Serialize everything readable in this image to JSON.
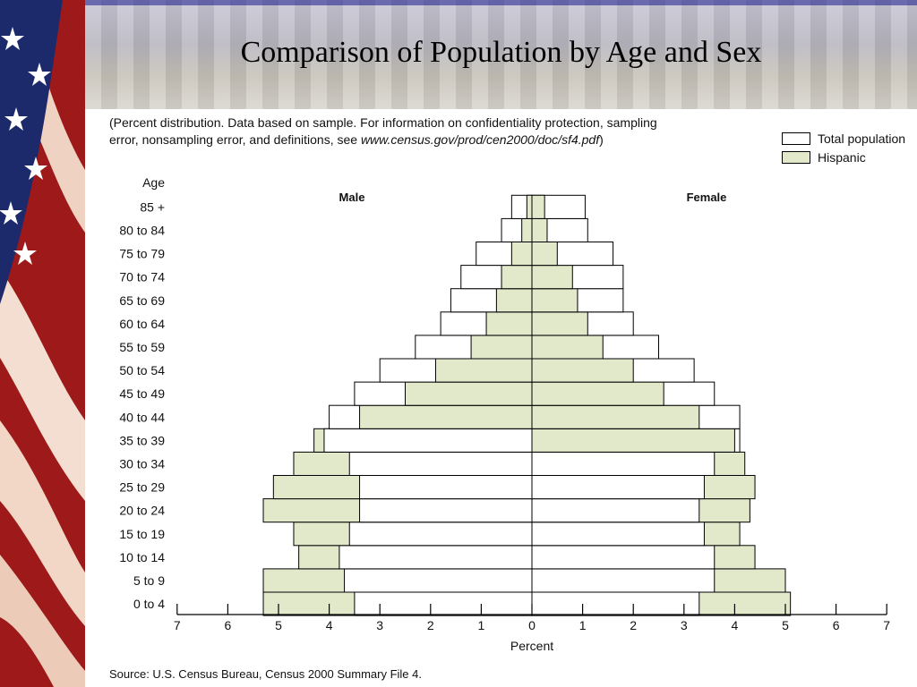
{
  "slide": {
    "title": "Comparison of Population by Age and Sex"
  },
  "caption": {
    "line1": "(Percent distribution.  Data based on sample.  For information on confidentiality protection, sampling",
    "line2_prefix": "error, nonsampling error, and definitions, see ",
    "line2_url": "www.census.gov/prod/cen2000/doc/sf4.pdf",
    "line2_suffix": ")"
  },
  "source": "Source:  U.S. Census Bureau, Census 2000 Summary File 4.",
  "colors": {
    "total_fill": "#ffffff",
    "hispanic_fill": "#e2e9cb",
    "hispanic_stroke": "#b8bd2e",
    "outline": "#000000",
    "flag_red": "#b31b1b",
    "flag_navy": "#1c2a6b"
  },
  "chart_data": {
    "type": "bar",
    "orientation": "horizontal",
    "subtype": "population-pyramid",
    "age_axis_label": "Age",
    "male_label": "Male",
    "female_label": "Female",
    "xlabel": "Percent",
    "xlim": [
      -7,
      7
    ],
    "xticks": [
      -7,
      -6,
      -5,
      -4,
      -3,
      -2,
      -1,
      0,
      1,
      2,
      3,
      4,
      5,
      6,
      7
    ],
    "xtick_labels": [
      "7",
      "6",
      "5",
      "4",
      "3",
      "2",
      "1",
      "0",
      "1",
      "2",
      "3",
      "4",
      "5",
      "6",
      "7"
    ],
    "legend_position": "top-right",
    "categories": [
      "0 to 4",
      "5 to 9",
      "10 to 14",
      "15 to 19",
      "20 to 24",
      "25 to 29",
      "30 to 34",
      "35 to 39",
      "40 to 44",
      "45 to 49",
      "50 to 54",
      "55 to 59",
      "60 to 64",
      "65 to 69",
      "70 to 74",
      "75 to 79",
      "80 to 84",
      "85 +"
    ],
    "series": [
      {
        "name": "Total population",
        "male": [
          3.5,
          3.7,
          3.8,
          3.6,
          3.4,
          3.4,
          3.6,
          4.1,
          4.0,
          3.5,
          3.0,
          2.3,
          1.8,
          1.6,
          1.4,
          1.1,
          0.6,
          0.4
        ],
        "female": [
          3.3,
          3.6,
          3.6,
          3.4,
          3.3,
          3.4,
          3.6,
          4.1,
          4.1,
          3.6,
          3.2,
          2.5,
          2.0,
          1.8,
          1.8,
          1.6,
          1.1,
          1.05
        ]
      },
      {
        "name": "Hispanic",
        "male": [
          5.3,
          5.3,
          4.6,
          4.7,
          5.3,
          5.1,
          4.7,
          4.3,
          3.4,
          2.5,
          1.9,
          1.2,
          0.9,
          0.7,
          0.6,
          0.4,
          0.2,
          0.1
        ],
        "female": [
          5.1,
          5.0,
          4.4,
          4.1,
          4.3,
          4.4,
          4.2,
          4.0,
          3.3,
          2.6,
          2.0,
          1.4,
          1.1,
          0.9,
          0.8,
          0.5,
          0.3,
          0.25
        ]
      }
    ]
  }
}
